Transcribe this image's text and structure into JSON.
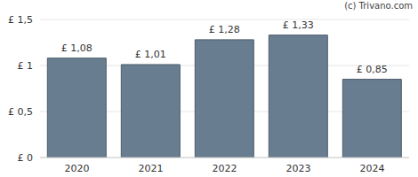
{
  "chart_data": {
    "type": "bar",
    "categories": [
      "2020",
      "2021",
      "2022",
      "2023",
      "2024"
    ],
    "values": [
      1.08,
      1.01,
      1.28,
      1.33,
      0.85
    ],
    "value_labels": [
      "£ 1,08",
      "£ 1,01",
      "£ 1,28",
      "£ 1,33",
      "£ 0,85"
    ],
    "data_labels": true,
    "color": "#687d90",
    "ylim": [
      0,
      1.5
    ],
    "yticks": [
      {
        "value": 0,
        "label": "£ 0"
      },
      {
        "value": 0.5,
        "label": "£ 0,5"
      },
      {
        "value": 1,
        "label": "£ 1"
      },
      {
        "value": 1.5,
        "label": "£ 1,5"
      }
    ],
    "grid": true,
    "annotation": "(c) Trivano.com"
  }
}
